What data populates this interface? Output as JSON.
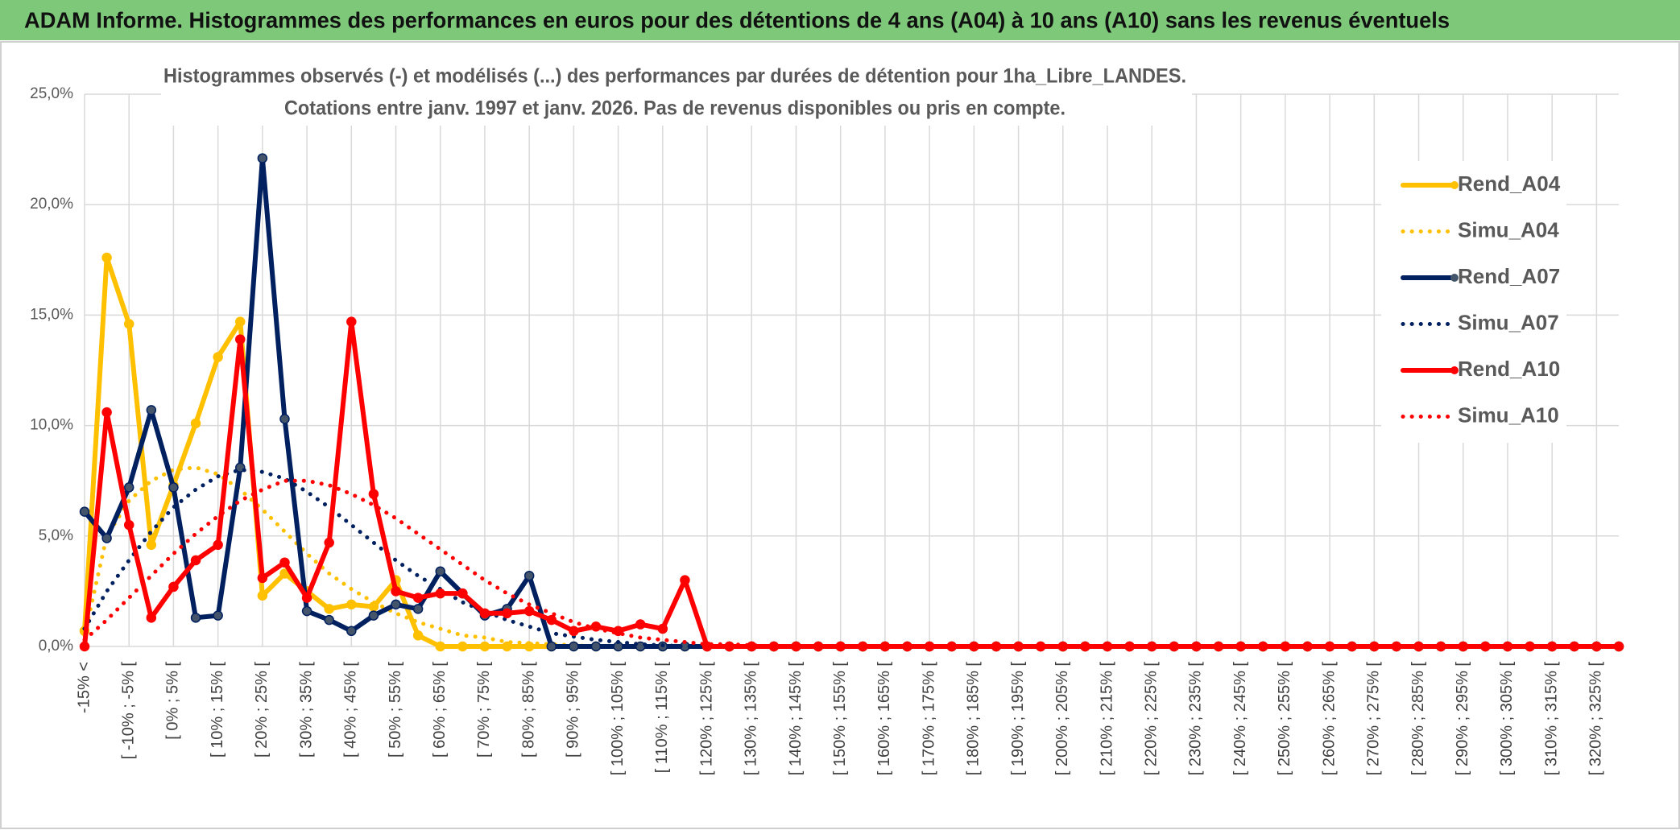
{
  "chart_data": {
    "type": "line",
    "title": "ADAM Informe. Histogrammes des performances en euros pour des détentions de 4 ans (A04) à 10 ans (A10) sans les revenus éventuels",
    "subtitle": [
      "Histogrammes observés (-) et modélisés (...) des performances par durées de détention pour 1ha_Libre_LANDES.",
      "Cotations entre janv. 1997 et janv. 2026. Pas de revenus disponibles ou pris en compte."
    ],
    "categories": [
      "-15% <",
      null,
      "[ -10% ; -5% [",
      null,
      "[ 0% ; 5% [",
      null,
      "[ 10% ; 15% [",
      null,
      "[ 20% ; 25% [",
      null,
      "[ 30% ; 35% [",
      null,
      "[ 40% ; 45% [",
      null,
      "[ 50% ; 55% [",
      null,
      "[ 60% ; 65% [",
      null,
      "[ 70% ; 75% [",
      null,
      "[ 80% ; 85% [",
      null,
      "[ 90% ; 95% [",
      null,
      "[ 100% ; 105% [",
      null,
      "[ 110% ; 115% [",
      null,
      "[ 120% ; 125% [",
      null,
      "[ 130% ; 135% [",
      null,
      "[ 140% ; 145% [",
      null,
      "[ 150% ; 155% [",
      null,
      "[ 160% ; 165% [",
      null,
      "[ 170% ; 175% [",
      null,
      "[ 180% ; 185% [",
      null,
      "[ 190% ; 195% [",
      null,
      "[ 200% ; 205% [",
      null,
      "[ 210% ; 215% [",
      null,
      "[ 220% ; 225% [",
      null,
      "[ 230% ; 235% [",
      null,
      "[ 240% ; 245% [",
      null,
      "[ 250% ; 255% [",
      null,
      "[ 260% ; 265% [",
      null,
      "[ 270% ; 275% [",
      null,
      "[ 280% ; 285% [",
      null,
      "[ 290% ; 295% [",
      null,
      "[ 300% ; 305% [",
      null,
      "[ 310% ; 315% [",
      null,
      "[ 320% ; 325% [",
      null
    ],
    "series": [
      {
        "name": "Rend_A04",
        "color": "#ffc000",
        "style": "solid",
        "markers": true,
        "values": [
          0.7,
          17.6,
          14.6,
          4.6,
          7.3,
          10.1,
          13.1,
          14.7,
          2.3,
          3.3,
          2.5,
          1.7,
          1.9,
          1.8,
          3.0,
          0.5,
          0,
          0,
          0,
          0,
          0,
          0,
          0,
          0,
          0,
          0,
          0,
          0,
          0,
          0,
          0,
          0,
          0,
          0,
          0,
          0,
          0,
          0,
          0,
          0,
          0,
          0,
          0,
          0,
          0,
          0,
          0,
          0,
          0,
          0,
          0,
          0,
          0,
          0,
          0,
          0,
          0,
          0,
          0,
          0,
          0,
          0,
          0,
          0,
          0,
          0,
          0,
          0,
          0,
          0
        ]
      },
      {
        "name": "Simu_A04",
        "color": "#ffc000",
        "style": "dotted",
        "markers": false,
        "values": [
          0.5,
          5.0,
          6.6,
          7.5,
          8.0,
          8.1,
          7.8,
          7.1,
          6.2,
          5.2,
          4.2,
          3.3,
          2.6,
          2.0,
          1.5,
          1.1,
          0.8,
          0.5,
          0.4,
          0.2,
          0.15,
          0.1,
          0.05,
          0,
          0,
          0,
          0,
          0,
          0,
          0,
          0,
          0,
          0,
          0,
          0,
          0,
          0,
          0,
          0,
          0,
          0,
          0,
          0,
          0,
          0,
          0,
          0,
          0,
          0,
          0,
          0,
          0,
          0,
          0,
          0,
          0,
          0,
          0,
          0,
          0,
          0,
          0,
          0,
          0,
          0,
          0,
          0,
          0,
          0,
          0
        ]
      },
      {
        "name": "Rend_A07",
        "color": "#002060",
        "style": "solid",
        "markers": true,
        "values": [
          6.1,
          4.9,
          7.2,
          10.7,
          7.2,
          1.3,
          1.4,
          8.1,
          22.1,
          10.3,
          1.6,
          1.2,
          0.7,
          1.4,
          1.9,
          1.7,
          3.4,
          2.4,
          1.4,
          1.7,
          3.2,
          0,
          0,
          0,
          0,
          0,
          0,
          0,
          0,
          0,
          0,
          0,
          0,
          0,
          0,
          0,
          0,
          0,
          0,
          0,
          0,
          0,
          0,
          0,
          0,
          0,
          0,
          0,
          0,
          0,
          0,
          0,
          0,
          0,
          0,
          0,
          0,
          0,
          0,
          0,
          0,
          0,
          0,
          0,
          0,
          0,
          0,
          0,
          0,
          0
        ]
      },
      {
        "name": "Simu_A07",
        "color": "#002060",
        "style": "dotted",
        "markers": false,
        "values": [
          0.8,
          2.5,
          3.9,
          5.2,
          6.3,
          7.1,
          7.7,
          8.0,
          7.9,
          7.6,
          7.0,
          6.3,
          5.5,
          4.7,
          3.9,
          3.2,
          2.6,
          2.0,
          1.6,
          1.2,
          0.9,
          0.6,
          0.45,
          0.3,
          0.2,
          0.1,
          0.05,
          0,
          0,
          0,
          0,
          0,
          0,
          0,
          0,
          0,
          0,
          0,
          0,
          0,
          0,
          0,
          0,
          0,
          0,
          0,
          0,
          0,
          0,
          0,
          0,
          0,
          0,
          0,
          0,
          0,
          0,
          0,
          0,
          0,
          0,
          0,
          0,
          0,
          0,
          0,
          0,
          0,
          0,
          0
        ]
      },
      {
        "name": "Rend_A10",
        "color": "#ff0000",
        "style": "solid",
        "markers": true,
        "values": [
          0,
          10.6,
          5.5,
          1.3,
          2.7,
          3.9,
          4.6,
          13.9,
          3.1,
          3.8,
          2.2,
          4.7,
          14.7,
          6.9,
          2.5,
          2.2,
          2.4,
          2.4,
          1.5,
          1.5,
          1.6,
          1.2,
          0.7,
          0.9,
          0.7,
          1.0,
          0.8,
          3.0,
          0,
          0,
          0,
          0,
          0,
          0,
          0,
          0,
          0,
          0,
          0,
          0,
          0,
          0,
          0,
          0,
          0,
          0,
          0,
          0,
          0,
          0,
          0,
          0,
          0,
          0,
          0,
          0,
          0,
          0,
          0,
          0,
          0,
          0,
          0,
          0,
          0,
          0,
          0,
          0,
          0,
          0
        ]
      },
      {
        "name": "Simu_A10",
        "color": "#ff0000",
        "style": "dotted",
        "markers": false,
        "values": [
          0.3,
          1.2,
          2.2,
          3.2,
          4.2,
          5.1,
          5.9,
          6.6,
          7.1,
          7.5,
          7.5,
          7.3,
          6.9,
          6.4,
          5.8,
          5.1,
          4.4,
          3.7,
          3.0,
          2.4,
          1.9,
          1.5,
          1.1,
          0.8,
          0.6,
          0.4,
          0.3,
          0.2,
          0.1,
          0.1,
          0.05,
          0,
          0,
          0,
          0,
          0,
          0,
          0,
          0,
          0,
          0,
          0,
          0,
          0,
          0,
          0,
          0,
          0,
          0,
          0,
          0,
          0,
          0,
          0,
          0,
          0,
          0,
          0,
          0,
          0,
          0,
          0,
          0,
          0,
          0,
          0,
          0,
          0,
          0,
          0
        ]
      }
    ],
    "ylim": [
      0,
      25
    ],
    "yticks": [
      {
        "value": 0,
        "label": "0,0%"
      },
      {
        "value": 5,
        "label": "5,0%"
      },
      {
        "value": 10,
        "label": "10,0%"
      },
      {
        "value": 15,
        "label": "15,0%"
      },
      {
        "value": 20,
        "label": "20,0%"
      },
      {
        "value": 25,
        "label": "25,0%"
      }
    ],
    "grid": true,
    "legend": "upper right"
  }
}
